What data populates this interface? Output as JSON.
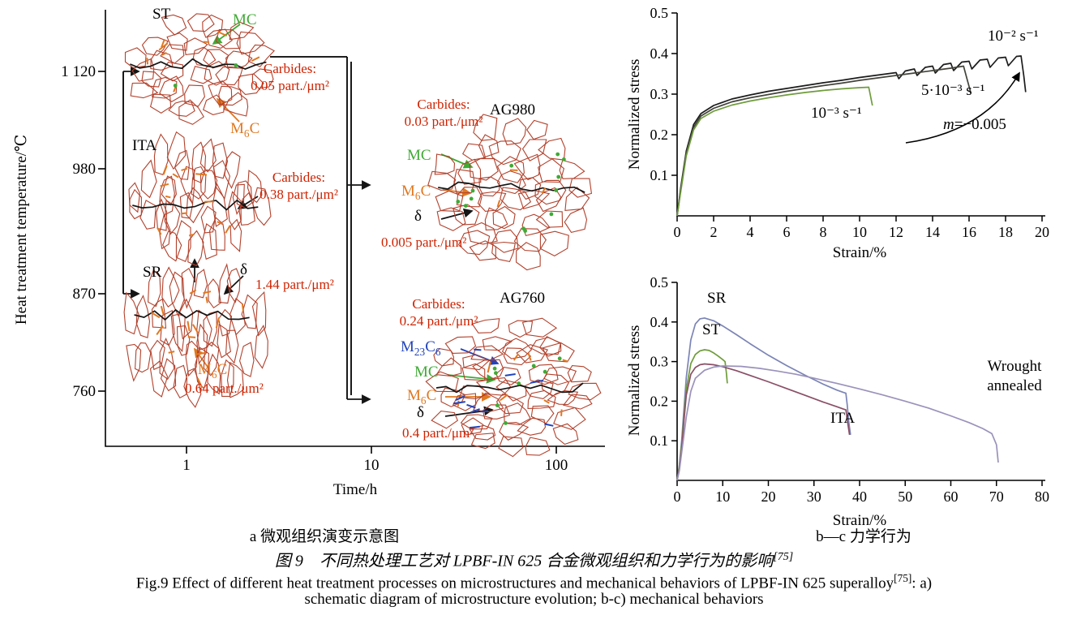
{
  "colors": {
    "grain": "#b2412c",
    "carbide_red": "#cf2200",
    "mc_green": "#3faa35",
    "m6c_orange": "#e07820",
    "m23c6_blue": "#2244bb",
    "delta_black": "#151515"
  },
  "panel_a": {
    "ylabel": "Heat treatment temperature/℃",
    "xlabel": "Time/h",
    "yticks": [
      "1 120",
      "980",
      "870",
      "760"
    ],
    "xticks": [
      "1",
      "10",
      "100"
    ],
    "caption": "a 微观组织演变示意图",
    "structures": {
      "st": "ST",
      "ita": "ITA",
      "sr": "SR",
      "ag980": "AG980",
      "ag760": "AG760"
    },
    "annotations": {
      "mc": "MC",
      "m6c": {
        "pre": "M",
        "sub": "6",
        "post": "C"
      },
      "m23c6": {
        "p1": "M",
        "s1": "23",
        "p2": "C",
        "s2": "6"
      },
      "delta": "δ",
      "carbides_word": "Carbides:",
      "st_carbides": "0.05 part./μm²",
      "ita_carbides": "0.38 part./μm²",
      "sr_delta_val": "1.44 part./μm²",
      "sr_m6c_val": "0.64 part./μm²",
      "ag980_carbides": "0.03 part./μm²",
      "ag980_delta_val": "0.005 part./μm²",
      "ag760_carbides": "0.24 part./μm²",
      "ag760_delta_val": "0.4 part./μm²"
    }
  },
  "panel_bc": {
    "caption": "b—c 力学行为"
  },
  "captions": {
    "zh": "图 9　不同热处理工艺对 LPBF-IN 625 合金微观组织和力学行为的影响",
    "zh_ref": "[75]",
    "en_l1": "Fig.9 Effect of different heat treatment processes on microstructures and mechanical behaviors of LPBF-IN 625 superalloy",
    "en_ref": "[75]",
    "en_l1_tail": ": a)",
    "en_l2": "schematic diagram of microstructure evolution; b-c) mechanical behaviors"
  },
  "chart_data": [
    {
      "type": "line",
      "panel": "b",
      "title": "",
      "xlabel": "Strain/%",
      "ylabel": "Normalized stress",
      "xlim": [
        0,
        20
      ],
      "ylim": [
        0,
        0.5
      ],
      "xticks": [
        0,
        2,
        4,
        6,
        8,
        10,
        12,
        14,
        16,
        18,
        20
      ],
      "yticks": [
        0.1,
        0.2,
        0.3,
        0.4,
        0.5
      ],
      "grid": false,
      "annotation": {
        "var": "m",
        "rest": "=−0.005"
      },
      "series": [
        {
          "name": "10⁻² s⁻¹",
          "color": "#1c1c1c",
          "x": [
            0,
            0.2,
            0.5,
            0.9,
            1.3,
            2,
            3,
            4,
            5,
            6,
            7,
            8,
            9,
            10,
            11,
            12,
            12.15,
            12.5,
            13,
            13.15,
            13.6,
            14,
            14.15,
            14.6,
            15,
            15.15,
            15.6,
            16,
            16.15,
            16.6,
            17,
            17.15,
            17.6,
            18,
            18.15,
            18.6,
            18.85,
            19,
            19.1
          ],
          "y": [
            0,
            0.07,
            0.16,
            0.225,
            0.252,
            0.272,
            0.288,
            0.298,
            0.307,
            0.314,
            0.321,
            0.328,
            0.334,
            0.341,
            0.347,
            0.353,
            0.338,
            0.357,
            0.362,
            0.346,
            0.366,
            0.369,
            0.352,
            0.373,
            0.376,
            0.358,
            0.379,
            0.381,
            0.362,
            0.384,
            0.386,
            0.366,
            0.389,
            0.391,
            0.37,
            0.393,
            0.394,
            0.345,
            0.305
          ]
        },
        {
          "name": "5·10⁻³ s⁻¹",
          "color": "#44443c",
          "x": [
            0,
            0.2,
            0.5,
            0.9,
            1.3,
            2,
            3,
            4,
            5,
            6,
            7,
            8,
            9,
            10,
            11,
            12,
            13,
            14,
            15,
            15.7,
            15.9,
            16.1
          ],
          "y": [
            0,
            0.065,
            0.155,
            0.218,
            0.246,
            0.265,
            0.281,
            0.291,
            0.299,
            0.307,
            0.314,
            0.321,
            0.327,
            0.334,
            0.34,
            0.346,
            0.352,
            0.358,
            0.364,
            0.369,
            0.335,
            0.302
          ]
        },
        {
          "name": "10⁻³ s⁻¹",
          "color": "#6f9c3c",
          "x": [
            0,
            0.2,
            0.5,
            0.9,
            1.3,
            2,
            3,
            4,
            5,
            6,
            7,
            8,
            9,
            10,
            10.5,
            10.7
          ],
          "y": [
            0,
            0.06,
            0.148,
            0.212,
            0.24,
            0.258,
            0.273,
            0.283,
            0.291,
            0.298,
            0.304,
            0.309,
            0.313,
            0.316,
            0.317,
            0.272
          ]
        }
      ]
    },
    {
      "type": "line",
      "panel": "c",
      "title": "",
      "xlabel": "Strain/%",
      "ylabel": "Normalized stress",
      "xlim": [
        0,
        80
      ],
      "ylim": [
        0,
        0.5
      ],
      "xticks": [
        0,
        10,
        20,
        30,
        40,
        50,
        60,
        70,
        80
      ],
      "yticks": [
        0.1,
        0.2,
        0.3,
        0.4,
        0.5
      ],
      "grid": false,
      "series": [
        {
          "name": "SR",
          "color": "#7b84b5",
          "x": [
            0,
            0.5,
            1,
            1.5,
            2,
            3,
            4,
            5,
            6,
            8,
            10,
            13,
            16,
            20,
            24,
            28,
            32,
            35,
            36.5,
            37,
            37.3,
            37.6,
            38
          ],
          "y": [
            0,
            0.04,
            0.1,
            0.18,
            0.26,
            0.355,
            0.395,
            0.408,
            0.41,
            0.403,
            0.39,
            0.368,
            0.345,
            0.316,
            0.29,
            0.266,
            0.243,
            0.228,
            0.222,
            0.22,
            0.19,
            0.15,
            0.115
          ]
        },
        {
          "name": "ST",
          "color": "#6f9c3c",
          "x": [
            0,
            0.5,
            1,
            1.5,
            2,
            3,
            4,
            5,
            6,
            7,
            8,
            9,
            10,
            10.5,
            10.8,
            11
          ],
          "y": [
            0,
            0.035,
            0.09,
            0.16,
            0.23,
            0.295,
            0.318,
            0.327,
            0.33,
            0.328,
            0.322,
            0.314,
            0.305,
            0.3,
            0.27,
            0.245
          ]
        },
        {
          "name": "ITA",
          "color": "#8a4f66",
          "x": [
            0,
            0.5,
            1,
            1.5,
            2,
            3,
            4,
            5,
            6,
            8,
            10,
            13,
            16,
            20,
            24,
            28,
            32,
            35,
            36.5,
            37,
            37.4,
            37.8
          ],
          "y": [
            0,
            0.03,
            0.08,
            0.15,
            0.215,
            0.268,
            0.285,
            0.292,
            0.294,
            0.292,
            0.287,
            0.277,
            0.265,
            0.249,
            0.232,
            0.215,
            0.198,
            0.186,
            0.18,
            0.178,
            0.145,
            0.115
          ]
        },
        {
          "name": "Wrought annealed",
          "color": "#9b92bb",
          "x": [
            0,
            0.5,
            1,
            2,
            3,
            4,
            6,
            8,
            10,
            14,
            18,
            22,
            26,
            30,
            35,
            40,
            45,
            50,
            55,
            60,
            64,
            67,
            69,
            70,
            70.4
          ],
          "y": [
            0,
            0.025,
            0.07,
            0.16,
            0.225,
            0.258,
            0.278,
            0.286,
            0.289,
            0.288,
            0.283,
            0.276,
            0.268,
            0.258,
            0.245,
            0.231,
            0.216,
            0.2,
            0.183,
            0.163,
            0.146,
            0.131,
            0.118,
            0.09,
            0.045
          ]
        }
      ]
    }
  ]
}
